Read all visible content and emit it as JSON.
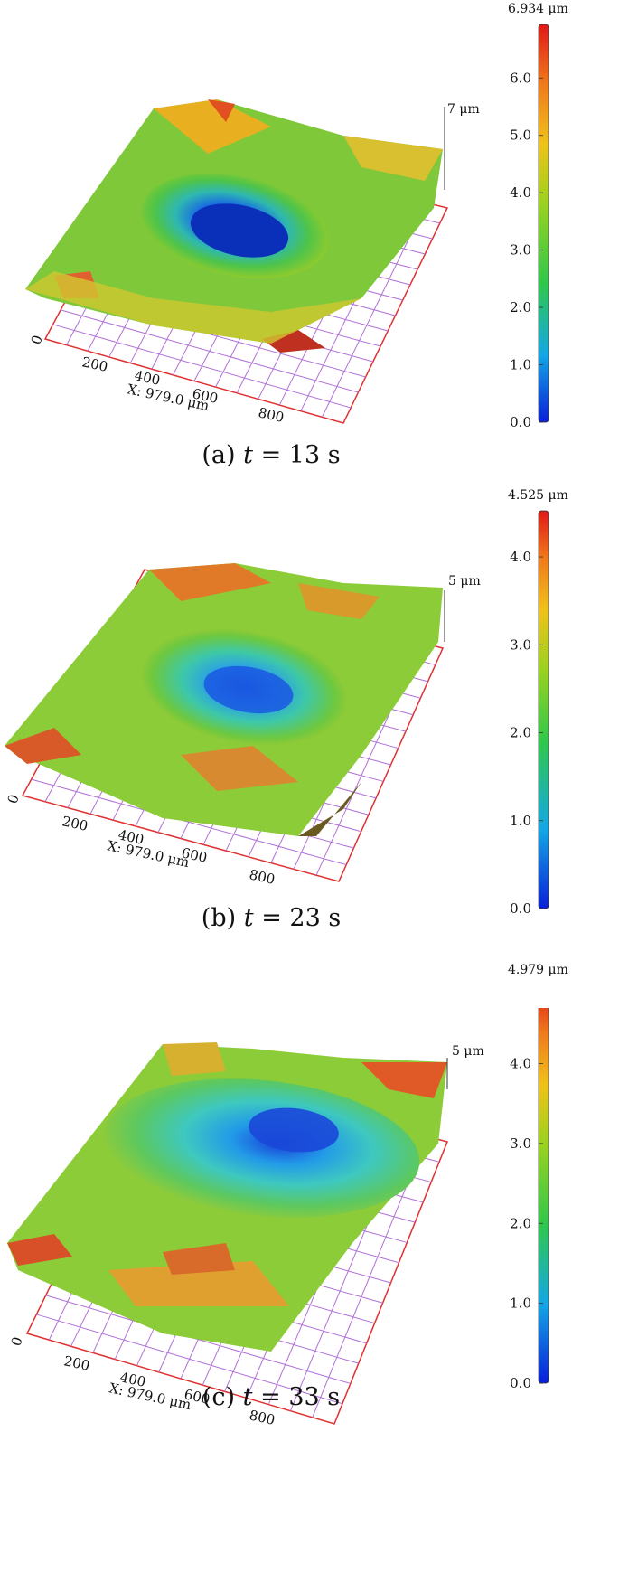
{
  "chart_data": [
    {
      "type": "surface3d",
      "panel_label": "(a)",
      "time_var": "t",
      "time_value": "= 13 s",
      "xlabel": "X: 979.0 μm",
      "x_ticks": [
        "0",
        "200",
        "400",
        "600",
        "800"
      ],
      "z_axis_label": "7 μm",
      "colorbar_max_label": "6.934 μm",
      "colorbar_ticks": [
        "0.0",
        "1.0",
        "2.0",
        "3.0",
        "4.0",
        "5.0",
        "6.0"
      ],
      "colorbar_range": [
        0,
        6.934
      ],
      "colormap": [
        "#0a1fd8",
        "#12a8e6",
        "#2fc84a",
        "#9ad21e",
        "#f0c21a",
        "#f07a1a",
        "#e01818"
      ]
    },
    {
      "type": "surface3d",
      "panel_label": "(b)",
      "time_var": "t",
      "time_value": "= 23 s",
      "xlabel": "X: 979.0 μm",
      "x_ticks": [
        "0",
        "200",
        "400",
        "600",
        "800"
      ],
      "z_axis_label": "5 μm",
      "colorbar_max_label": "4.525 μm",
      "colorbar_ticks": [
        "0.0",
        "1.0",
        "2.0",
        "3.0",
        "4.0"
      ],
      "colorbar_range": [
        0,
        4.525
      ],
      "colormap": [
        "#0a1fd8",
        "#12a8e6",
        "#2fc84a",
        "#9ad21e",
        "#f0c21a",
        "#f07a1a",
        "#e01818"
      ]
    },
    {
      "type": "surface3d",
      "panel_label": "(c)",
      "time_var": "t",
      "time_value": "= 33 s",
      "xlabel": "X: 979.0 μm",
      "x_ticks": [
        "0",
        "200",
        "400",
        "600",
        "800"
      ],
      "z_axis_label": "5 μm",
      "colorbar_max_label": "4.979 μm",
      "colorbar_ticks": [
        "0.0",
        "1.0",
        "2.0",
        "3.0",
        "4.0"
      ],
      "colorbar_range": [
        0,
        4.979
      ],
      "colormap": [
        "#0a1fd8",
        "#12a8e6",
        "#2fc84a",
        "#9ad21e",
        "#f0c21a",
        "#f07a1a",
        "#e01818"
      ]
    }
  ]
}
